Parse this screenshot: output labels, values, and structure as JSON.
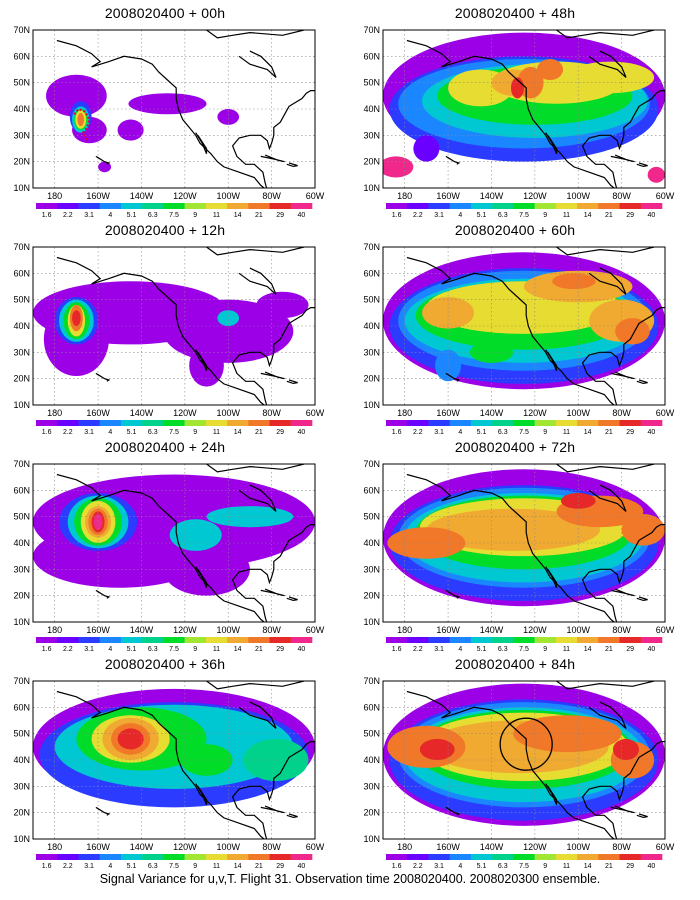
{
  "panels": [
    {
      "title": "2008020400 + 00h"
    },
    {
      "title": "2008020400 + 48h"
    },
    {
      "title": "2008020400 + 12h"
    },
    {
      "title": "2008020400 + 60h"
    },
    {
      "title": "2008020400 + 24h"
    },
    {
      "title": "2008020400 + 72h"
    },
    {
      "title": "2008020400 + 36h"
    },
    {
      "title": "2008020400 + 84h"
    }
  ],
  "lat_labels": [
    "70N",
    "60N",
    "50N",
    "40N",
    "30N",
    "20N",
    "10N"
  ],
  "lon_labels": [
    "180",
    "160W",
    "140W",
    "120W",
    "100W",
    "80W",
    "60W"
  ],
  "colorbar": {
    "labels": [
      "1.6",
      "2.2",
      "3.1",
      "4",
      "5.1",
      "6.3",
      "7.5",
      "9",
      "11",
      "14",
      "21",
      "29",
      "40"
    ],
    "colors": [
      "#9b00e6",
      "#6a00ff",
      "#2b3bff",
      "#1a86ff",
      "#00c8d2",
      "#00d28c",
      "#00dc28",
      "#a0e632",
      "#e6dc32",
      "#f0aa32",
      "#f07828",
      "#e62828",
      "#f0288c"
    ]
  },
  "caption": "Signal Variance for u,v,T. Flight 31. Observation time 2008020400. 2008020300 ensemble."
}
